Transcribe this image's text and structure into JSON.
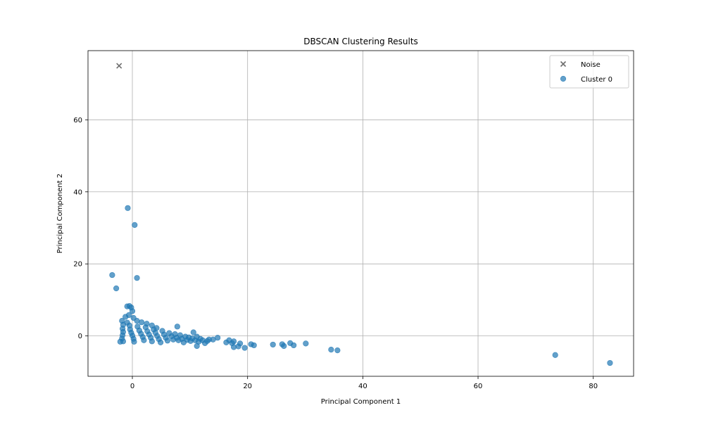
{
  "chart_data": {
    "type": "scatter",
    "title": "DBSCAN Clustering Results",
    "xlabel": "Principal Component 1",
    "ylabel": "Principal Component 2",
    "xlim": [
      -7.7,
      87.0
    ],
    "ylim": [
      -11.2,
      79.2
    ],
    "xticks": [
      0,
      20,
      40,
      60,
      80
    ],
    "yticks": [
      0,
      20,
      40,
      60
    ],
    "grid": true,
    "legend_position": "top-right",
    "series": [
      {
        "name": "Noise",
        "marker": "x",
        "color": "#6e6e6e",
        "points": [
          [
            -2.3,
            75.0
          ]
        ]
      },
      {
        "name": "Cluster 0",
        "marker": "o",
        "color": "#1f77b4",
        "points": [
          [
            -0.8,
            35.5
          ],
          [
            0.4,
            30.8
          ],
          [
            -3.5,
            16.9
          ],
          [
            -2.8,
            13.2
          ],
          [
            0.8,
            16.1
          ],
          [
            -0.9,
            8.2
          ],
          [
            -0.5,
            8.3
          ],
          [
            -0.2,
            7.9
          ],
          [
            0.0,
            6.9
          ],
          [
            -1.2,
            5.3
          ],
          [
            -0.6,
            5.8
          ],
          [
            0.2,
            5.0
          ],
          [
            0.8,
            4.2
          ],
          [
            1.6,
            3.8
          ],
          [
            2.5,
            3.4
          ],
          [
            3.4,
            2.9
          ],
          [
            4.2,
            2.2
          ],
          [
            -1.8,
            4.2
          ],
          [
            -1.6,
            3.1
          ],
          [
            -1.7,
            2.0
          ],
          [
            -1.6,
            1.1
          ],
          [
            -1.7,
            0.2
          ],
          [
            -1.8,
            -0.7
          ],
          [
            -1.6,
            -1.5
          ],
          [
            -2.1,
            -1.6
          ],
          [
            -0.9,
            3.7
          ],
          [
            -0.5,
            2.9
          ],
          [
            -0.4,
            1.8
          ],
          [
            -0.2,
            0.9
          ],
          [
            0.0,
            0.1
          ],
          [
            0.2,
            -0.8
          ],
          [
            0.3,
            -1.6
          ],
          [
            0.9,
            2.6
          ],
          [
            1.2,
            1.5
          ],
          [
            1.5,
            0.6
          ],
          [
            1.8,
            -0.3
          ],
          [
            2.0,
            -1.2
          ],
          [
            2.3,
            2.4
          ],
          [
            2.6,
            1.3
          ],
          [
            2.9,
            0.4
          ],
          [
            3.2,
            -0.5
          ],
          [
            3.4,
            -1.5
          ],
          [
            3.7,
            1.8
          ],
          [
            4.0,
            0.9
          ],
          [
            4.3,
            0.0
          ],
          [
            4.6,
            -0.9
          ],
          [
            4.9,
            -1.8
          ],
          [
            5.2,
            1.4
          ],
          [
            5.5,
            0.4
          ],
          [
            5.8,
            -0.5
          ],
          [
            6.1,
            -1.3
          ],
          [
            6.4,
            0.8
          ],
          [
            6.8,
            -0.1
          ],
          [
            7.1,
            -1.0
          ],
          [
            7.4,
            0.5
          ],
          [
            7.7,
            -0.5
          ],
          [
            7.8,
            2.6
          ],
          [
            8.0,
            -1.2
          ],
          [
            8.3,
            0.2
          ],
          [
            8.6,
            -0.8
          ],
          [
            8.9,
            -1.8
          ],
          [
            9.2,
            -0.2
          ],
          [
            9.5,
            -1.1
          ],
          [
            9.8,
            -0.4
          ],
          [
            10.1,
            -1.4
          ],
          [
            10.4,
            -0.7
          ],
          [
            10.6,
            1.0
          ],
          [
            10.9,
            -1.2
          ],
          [
            11.2,
            -0.2
          ],
          [
            11.5,
            -1.6
          ],
          [
            11.8,
            -0.8
          ],
          [
            11.2,
            -2.8
          ],
          [
            12.2,
            -1.2
          ],
          [
            12.6,
            -2.0
          ],
          [
            13.0,
            -1.4
          ],
          [
            13.3,
            -1.0
          ],
          [
            14.0,
            -1.0
          ],
          [
            14.8,
            -0.5
          ],
          [
            16.3,
            -1.8
          ],
          [
            16.8,
            -1.2
          ],
          [
            17.3,
            -2.0
          ],
          [
            17.6,
            -1.5
          ],
          [
            17.6,
            -3.1
          ],
          [
            18.4,
            -2.9
          ],
          [
            18.7,
            -2.1
          ],
          [
            19.5,
            -3.3
          ],
          [
            20.6,
            -2.3
          ],
          [
            21.1,
            -2.6
          ],
          [
            24.4,
            -2.4
          ],
          [
            26.0,
            -2.3
          ],
          [
            26.3,
            -2.8
          ],
          [
            27.4,
            -2.0
          ],
          [
            28.0,
            -2.6
          ],
          [
            30.1,
            -2.1
          ],
          [
            34.5,
            -3.8
          ],
          [
            35.6,
            -4.0
          ],
          [
            73.4,
            -5.3
          ],
          [
            82.9,
            -7.5
          ]
        ]
      }
    ]
  }
}
